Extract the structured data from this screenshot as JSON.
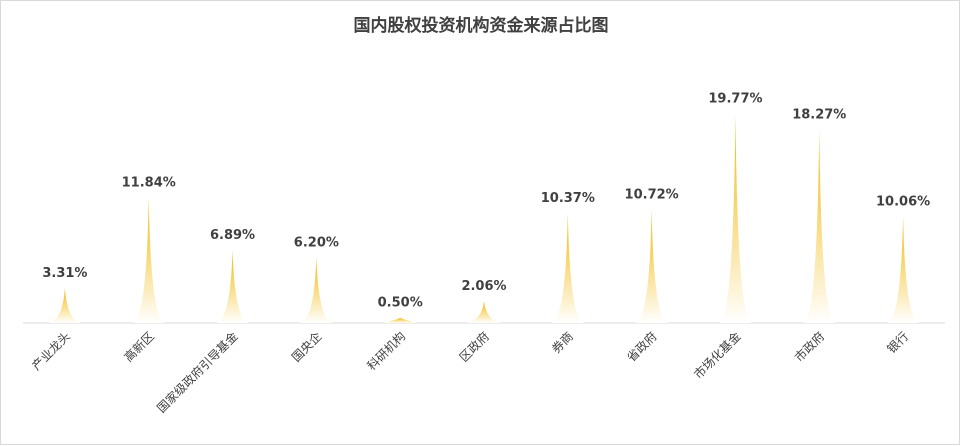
{
  "chart_data": {
    "type": "bar",
    "title": "国内股权投资机构资金来源占比图",
    "categories": [
      "产业龙头",
      "高新区",
      "国家级政府引导基金",
      "国央企",
      "科研机构",
      "区政府",
      "券商",
      "省政府",
      "市场化基金",
      "市政府",
      "银行"
    ],
    "values": [
      3.31,
      11.84,
      6.89,
      6.2,
      0.5,
      2.06,
      10.37,
      10.72,
      19.77,
      18.27,
      10.06
    ],
    "value_labels": [
      "3.31%",
      "11.84%",
      "6.89%",
      "6.20%",
      "0.50%",
      "2.06%",
      "10.37%",
      "10.72%",
      "19.77%",
      "18.27%",
      "10.06%"
    ],
    "ylim": [
      0,
      20
    ],
    "grid": false,
    "bar_shape": "spike",
    "colors": {
      "top": "#f2b705",
      "bottom": "#ffffff",
      "axis": "#d9d9d9",
      "text": "#404040"
    }
  }
}
